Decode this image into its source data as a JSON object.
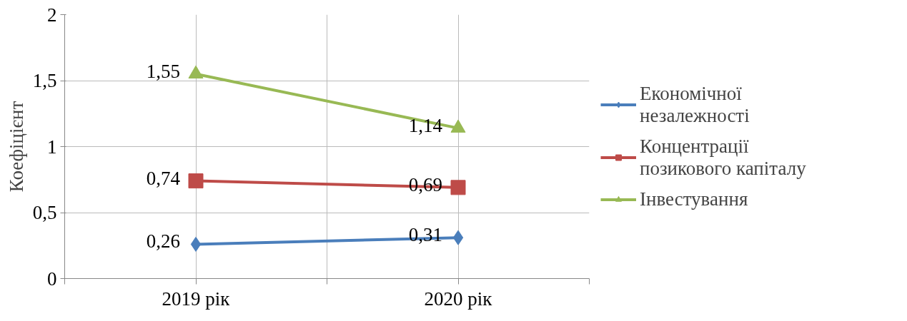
{
  "chart_data": {
    "type": "line",
    "ylabel": "Коефіцієнт",
    "categories": [
      "2019 рік",
      "2020 рік"
    ],
    "series": [
      {
        "name": "Економічної незалежності",
        "color": "#4a7ebb",
        "marker": "diamond",
        "values": [
          0.26,
          0.31
        ],
        "value_labels": [
          "0,26",
          "0,31"
        ]
      },
      {
        "name": "Концентрації позикового капіталу",
        "color": "#be4b48",
        "marker": "square",
        "values": [
          0.74,
          0.69
        ],
        "value_labels": [
          "0,74",
          "0,69"
        ]
      },
      {
        "name": "Інвестування",
        "color": "#98b954",
        "marker": "triangle",
        "values": [
          1.55,
          1.14
        ],
        "value_labels": [
          "1,55",
          "1,14"
        ]
      }
    ],
    "ylim": [
      0,
      2
    ],
    "yticks": [
      0,
      {
        "value": 0.5,
        "label": "0,5"
      },
      1,
      {
        "value": 1.5,
        "label": "1,5"
      },
      2
    ],
    "grid": true,
    "legend": "right",
    "line_style": "solid"
  }
}
